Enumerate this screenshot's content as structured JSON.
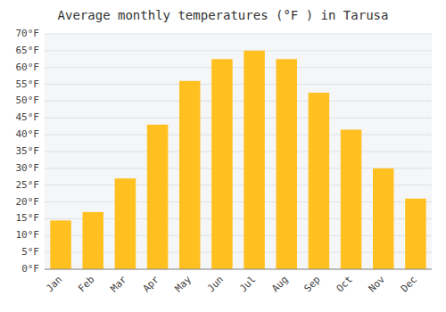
{
  "chart_data": {
    "type": "bar",
    "title": "Average monthly temperatures (°F ) in Tarusa",
    "categories": [
      "Jan",
      "Feb",
      "Mar",
      "Apr",
      "May",
      "Jun",
      "Jul",
      "Aug",
      "Sep",
      "Oct",
      "Nov",
      "Dec"
    ],
    "values": [
      14.5,
      17.0,
      27.0,
      43.0,
      56.0,
      62.5,
      65.0,
      62.5,
      52.5,
      41.5,
      30.0,
      21.0
    ],
    "color": "#FFC020",
    "ylim": [
      0,
      70
    ],
    "yticks": [
      {
        "value": 0,
        "label": "0°F"
      },
      {
        "value": 5,
        "label": "5°F"
      },
      {
        "value": 10,
        "label": "10°F"
      },
      {
        "value": 15,
        "label": "15°F"
      },
      {
        "value": 20,
        "label": "20°F"
      },
      {
        "value": 25,
        "label": "25°F"
      },
      {
        "value": 30,
        "label": "30°F"
      },
      {
        "value": 35,
        "label": "35°F"
      },
      {
        "value": 40,
        "label": "40°F"
      },
      {
        "value": 45,
        "label": "45°F"
      },
      {
        "value": 50,
        "label": "50°F"
      },
      {
        "value": 55,
        "label": "55°F"
      },
      {
        "value": 60,
        "label": "60°F"
      },
      {
        "value": 65,
        "label": "65°F"
      },
      {
        "value": 70,
        "label": "70°F"
      }
    ],
    "grid": true
  }
}
